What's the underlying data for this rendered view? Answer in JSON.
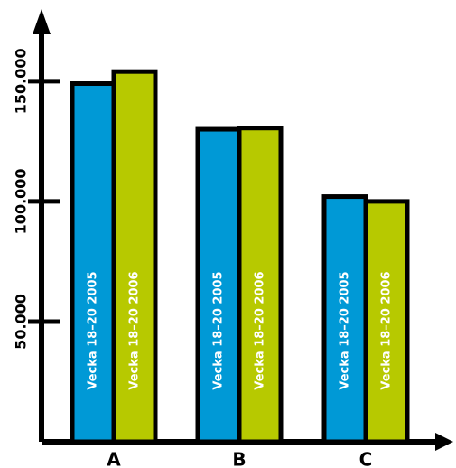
{
  "chart_data": {
    "type": "bar",
    "categories": [
      "A",
      "B",
      "C"
    ],
    "series": [
      {
        "name": "Vecka 18–20 2005",
        "color": "#0099d6",
        "values": [
          149000,
          130000,
          102000
        ]
      },
      {
        "name": "Vecka 18–20 2006",
        "color": "#b7c900",
        "values": [
          154000,
          130500,
          100000
        ]
      }
    ],
    "title": "",
    "xlabel": "",
    "ylabel": "",
    "ylim": [
      0,
      180000
    ],
    "yticks": [
      50000,
      100000,
      150000
    ],
    "ytick_labels": [
      "50.000",
      "100.000",
      "150.000"
    ],
    "grid": false,
    "legend": "none",
    "bar_labels_inside": true
  }
}
